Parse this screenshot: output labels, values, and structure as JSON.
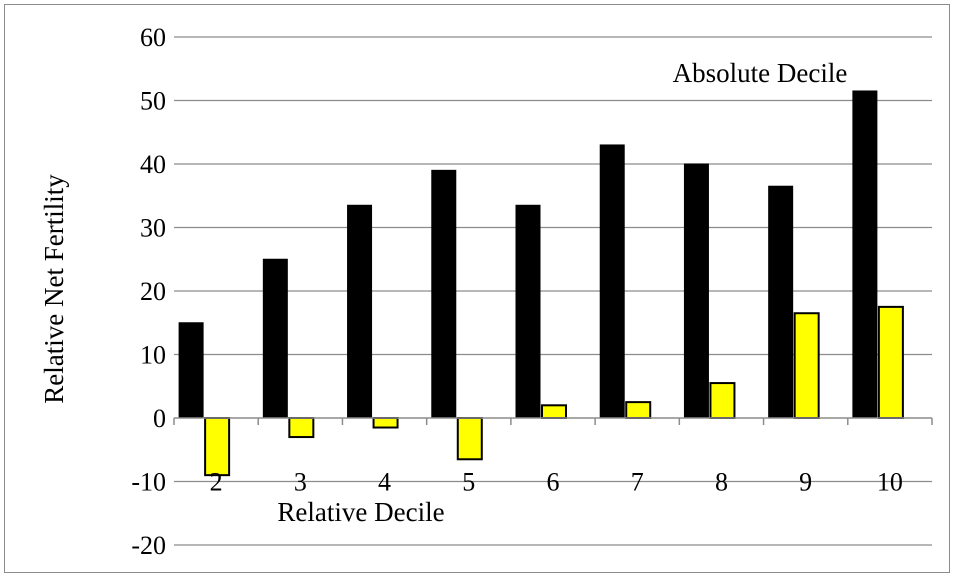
{
  "chart_data": {
    "type": "bar",
    "title": "",
    "xlabel": "Relative Decile",
    "ylabel": "Relative Net Fertility",
    "categories": [
      "2",
      "3",
      "4",
      "5",
      "6",
      "7",
      "8",
      "9",
      "10"
    ],
    "series": [
      {
        "name": "Absolute Decile",
        "color": "#000000",
        "values": [
          15,
          25,
          33.5,
          39,
          33.5,
          43,
          40,
          36.5,
          51.5
        ]
      },
      {
        "name": "",
        "color": "#ffff00",
        "values": [
          -9,
          -3,
          -1.5,
          -6.5,
          2,
          2.5,
          5.5,
          16.5,
          17.5
        ]
      }
    ],
    "ylim": [
      -20,
      60
    ],
    "yticks": [
      -20,
      -10,
      0,
      10,
      20,
      30,
      40,
      50,
      60
    ],
    "grid": true,
    "legend": "none"
  }
}
